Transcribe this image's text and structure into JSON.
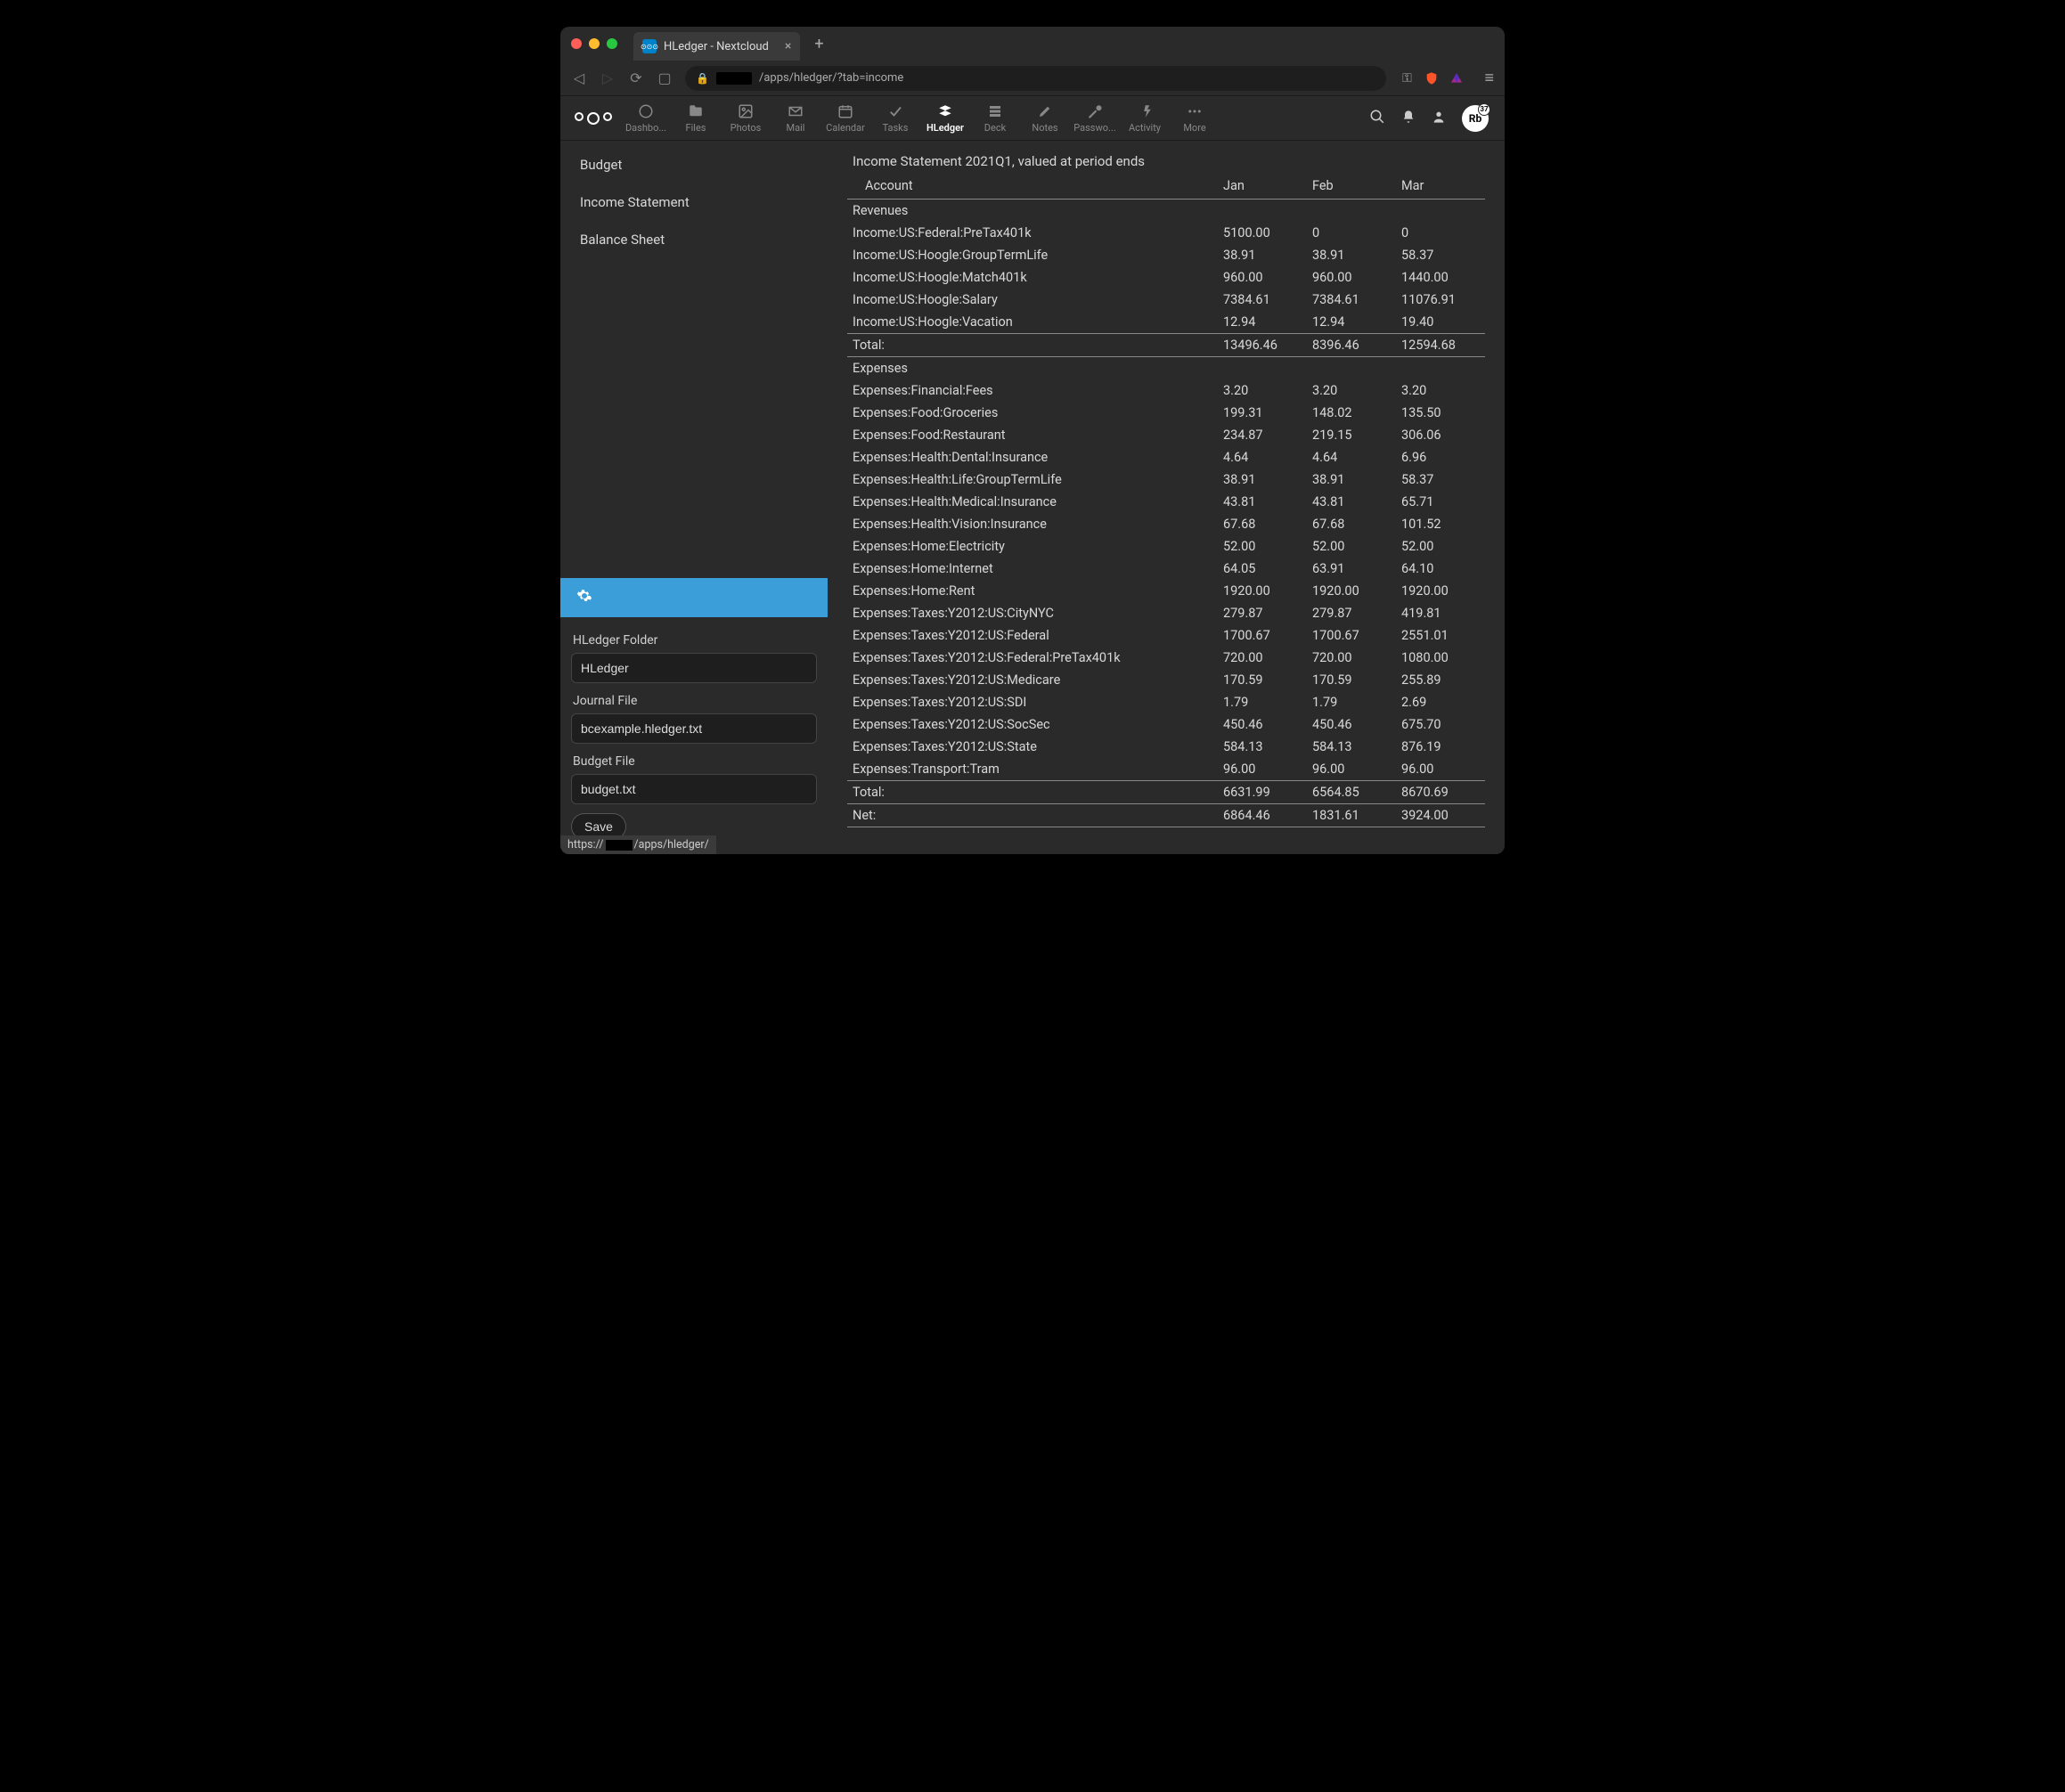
{
  "browser": {
    "tab_title": "HLedger - Nextcloud",
    "url_path": "/apps/hledger/?tab=income",
    "status_url_prefix": "https://",
    "status_url_suffix": "/apps/hledger/"
  },
  "nextcloud_apps": [
    {
      "label": "Dashbo...",
      "icon": "◯"
    },
    {
      "label": "Files",
      "icon": "📁"
    },
    {
      "label": "Photos",
      "icon": "🖼"
    },
    {
      "label": "Mail",
      "icon": "✉"
    },
    {
      "label": "Calendar",
      "icon": "📅"
    },
    {
      "label": "Tasks",
      "icon": "✓"
    },
    {
      "label": "HLedger",
      "icon": "≣",
      "active": true
    },
    {
      "label": "Deck",
      "icon": "▤"
    },
    {
      "label": "Notes",
      "icon": "✎"
    },
    {
      "label": "Passwo...",
      "icon": "🔑"
    },
    {
      "label": "Activity",
      "icon": "⚡"
    },
    {
      "label": "More",
      "icon": "⋯"
    }
  ],
  "avatar_text": "Rb",
  "avatar_badge": "37",
  "sidebar": {
    "items": [
      {
        "label": "Budget"
      },
      {
        "label": "Income Statement"
      },
      {
        "label": "Balance Sheet"
      }
    ]
  },
  "settings": {
    "folder_label": "HLedger Folder",
    "folder_value": "HLedger",
    "journal_label": "Journal File",
    "journal_value": "bcexample.hledger.txt",
    "budget_label": "Budget File",
    "budget_value": "budget.txt",
    "save_label": "Save"
  },
  "statement": {
    "title": "Income Statement 2021Q1, valued at period ends",
    "account_header": "Account",
    "months": [
      "Jan",
      "Feb",
      "Mar"
    ],
    "revenues_label": "Revenues",
    "revenues": [
      {
        "name": "Income:US:Federal:PreTax401k",
        "vals": [
          "5100.00",
          "0",
          "0"
        ]
      },
      {
        "name": "Income:US:Hoogle:GroupTermLife",
        "vals": [
          "38.91",
          "38.91",
          "58.37"
        ]
      },
      {
        "name": "Income:US:Hoogle:Match401k",
        "vals": [
          "960.00",
          "960.00",
          "1440.00"
        ]
      },
      {
        "name": "Income:US:Hoogle:Salary",
        "vals": [
          "7384.61",
          "7384.61",
          "11076.91"
        ]
      },
      {
        "name": "Income:US:Hoogle:Vacation",
        "vals": [
          "12.94",
          "12.94",
          "19.40"
        ]
      }
    ],
    "revenues_total": {
      "label": "Total:",
      "vals": [
        "13496.46",
        "8396.46",
        "12594.68"
      ]
    },
    "expenses_label": "Expenses",
    "expenses": [
      {
        "name": "Expenses:Financial:Fees",
        "vals": [
          "3.20",
          "3.20",
          "3.20"
        ]
      },
      {
        "name": "Expenses:Food:Groceries",
        "vals": [
          "199.31",
          "148.02",
          "135.50"
        ]
      },
      {
        "name": "Expenses:Food:Restaurant",
        "vals": [
          "234.87",
          "219.15",
          "306.06"
        ]
      },
      {
        "name": "Expenses:Health:Dental:Insurance",
        "vals": [
          "4.64",
          "4.64",
          "6.96"
        ]
      },
      {
        "name": "Expenses:Health:Life:GroupTermLife",
        "vals": [
          "38.91",
          "38.91",
          "58.37"
        ]
      },
      {
        "name": "Expenses:Health:Medical:Insurance",
        "vals": [
          "43.81",
          "43.81",
          "65.71"
        ]
      },
      {
        "name": "Expenses:Health:Vision:Insurance",
        "vals": [
          "67.68",
          "67.68",
          "101.52"
        ]
      },
      {
        "name": "Expenses:Home:Electricity",
        "vals": [
          "52.00",
          "52.00",
          "52.00"
        ]
      },
      {
        "name": "Expenses:Home:Internet",
        "vals": [
          "64.05",
          "63.91",
          "64.10"
        ]
      },
      {
        "name": "Expenses:Home:Rent",
        "vals": [
          "1920.00",
          "1920.00",
          "1920.00"
        ]
      },
      {
        "name": "Expenses:Taxes:Y2012:US:CityNYC",
        "vals": [
          "279.87",
          "279.87",
          "419.81"
        ]
      },
      {
        "name": "Expenses:Taxes:Y2012:US:Federal",
        "vals": [
          "1700.67",
          "1700.67",
          "2551.01"
        ]
      },
      {
        "name": "Expenses:Taxes:Y2012:US:Federal:PreTax401k",
        "vals": [
          "720.00",
          "720.00",
          "1080.00"
        ]
      },
      {
        "name": "Expenses:Taxes:Y2012:US:Medicare",
        "vals": [
          "170.59",
          "170.59",
          "255.89"
        ]
      },
      {
        "name": "Expenses:Taxes:Y2012:US:SDI",
        "vals": [
          "1.79",
          "1.79",
          "2.69"
        ]
      },
      {
        "name": "Expenses:Taxes:Y2012:US:SocSec",
        "vals": [
          "450.46",
          "450.46",
          "675.70"
        ]
      },
      {
        "name": "Expenses:Taxes:Y2012:US:State",
        "vals": [
          "584.13",
          "584.13",
          "876.19"
        ]
      },
      {
        "name": "Expenses:Transport:Tram",
        "vals": [
          "96.00",
          "96.00",
          "96.00"
        ]
      }
    ],
    "expenses_total": {
      "label": "Total:",
      "vals": [
        "6631.99",
        "6564.85",
        "8670.69"
      ]
    },
    "net": {
      "label": "Net:",
      "vals": [
        "6864.46",
        "1831.61",
        "3924.00"
      ]
    }
  },
  "colors": {
    "bg": "#2a2a2a",
    "accent": "#3b9ed8",
    "text": "#d8d8d8",
    "border": "#888888"
  }
}
